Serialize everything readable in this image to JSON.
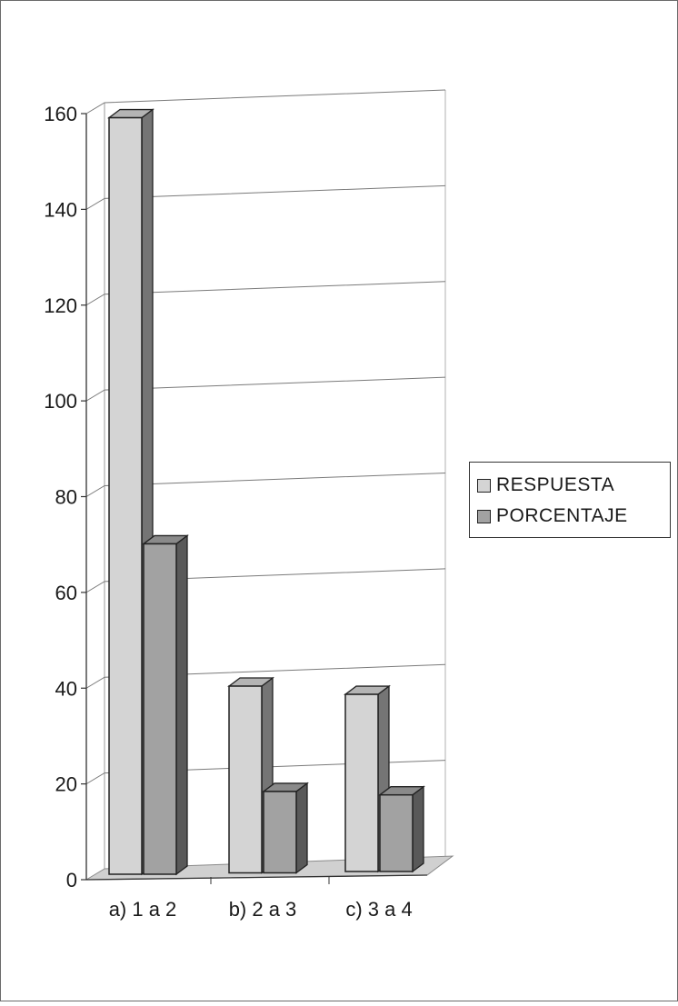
{
  "chart_data": {
    "type": "bar",
    "categories": [
      "a) 1 a 2",
      "b) 2 a 3",
      "c) 3 a 4"
    ],
    "series": [
      {
        "name": "RESPUESTA",
        "values": [
          158,
          39,
          37
        ],
        "color": "#d4d4d4"
      },
      {
        "name": "PORCENTAJE",
        "values": [
          69,
          17,
          16
        ],
        "color": "#a2a2a2"
      }
    ],
    "ylim": [
      0,
      160
    ],
    "yticks": [
      "0",
      "20",
      "40",
      "60",
      "80",
      "100",
      "120",
      "140",
      "160"
    ],
    "grid": true,
    "legend": "right",
    "style": "3d-column"
  }
}
